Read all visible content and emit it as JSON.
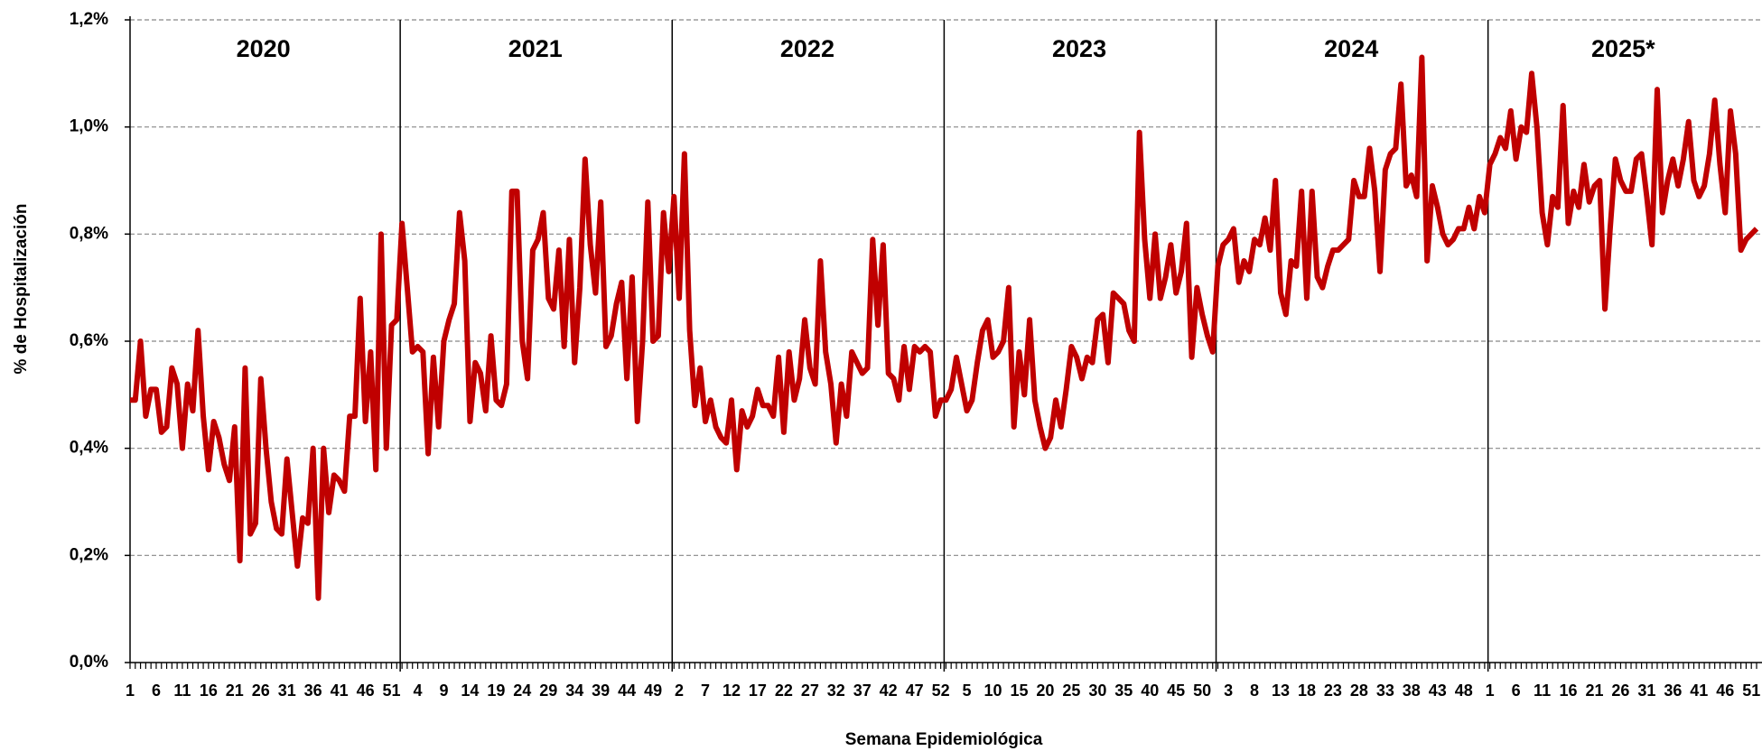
{
  "chart_data": {
    "type": "line",
    "xlabel": "Semana Epidemiológica",
    "ylabel": "% de Hospitalización",
    "annotations": [
      "2020",
      "2021",
      "2022",
      "2023",
      "2024",
      "2025*"
    ],
    "categories": [
      1,
      null,
      null,
      null,
      null,
      6,
      null,
      null,
      null,
      null,
      11,
      null,
      null,
      null,
      null,
      16,
      null,
      null,
      null,
      null,
      21,
      null,
      null,
      null,
      null,
      26,
      null,
      null,
      null,
      null,
      31,
      null,
      null,
      null,
      null,
      36,
      null,
      null,
      null,
      null,
      41,
      null,
      null,
      null,
      null,
      46,
      null,
      null,
      null,
      null,
      51,
      null,
      null,
      null,
      null,
      4,
      null,
      null,
      null,
      null,
      9,
      null,
      null,
      null,
      null,
      14,
      null,
      null,
      null,
      null,
      19,
      null,
      null,
      null,
      null,
      24,
      null,
      null,
      null,
      null,
      29,
      null,
      null,
      null,
      null,
      34,
      null,
      null,
      null,
      null,
      39,
      null,
      null,
      null,
      null,
      44,
      null,
      null,
      null,
      null,
      49,
      null,
      null,
      null,
      null,
      2,
      null,
      null,
      null,
      null,
      7,
      null,
      null,
      null,
      null,
      12,
      null,
      null,
      null,
      null,
      17,
      null,
      null,
      null,
      null,
      22,
      null,
      null,
      null,
      null,
      27,
      null,
      null,
      null,
      null,
      32,
      null,
      null,
      null,
      null,
      37,
      null,
      null,
      null,
      null,
      42,
      null,
      null,
      null,
      null,
      47,
      null,
      null,
      null,
      null,
      52,
      null,
      null,
      null,
      null,
      5,
      null,
      null,
      null,
      null,
      10,
      null,
      null,
      null,
      null,
      15,
      null,
      null,
      null,
      null,
      20,
      null,
      null,
      null,
      null,
      25,
      null,
      null,
      null,
      null,
      30,
      null,
      null,
      null,
      null,
      35,
      null,
      null,
      null,
      null,
      40,
      null,
      null,
      null,
      null,
      45,
      null,
      null,
      null,
      null,
      50,
      null,
      null,
      null,
      null,
      3,
      null,
      null,
      null,
      null,
      8,
      null,
      null,
      null,
      null,
      13,
      null,
      null,
      null,
      null,
      18,
      null,
      null,
      null,
      null,
      23,
      null,
      null,
      null,
      null,
      28,
      null,
      null,
      null,
      null,
      33,
      null,
      null,
      null,
      null,
      38,
      null,
      null,
      null,
      null,
      43,
      null,
      null,
      null,
      null,
      48,
      null,
      null,
      null,
      null,
      1,
      null,
      null,
      null,
      null,
      6,
      null,
      null,
      null,
      null,
      11,
      null,
      null,
      null,
      null,
      16,
      null,
      null,
      null,
      null,
      21,
      null,
      null,
      null,
      null,
      26,
      null,
      null,
      null,
      null,
      31,
      null,
      null,
      null,
      null,
      36,
      null,
      null,
      null,
      null,
      41,
      null,
      null,
      null,
      null,
      46,
      null,
      null,
      null,
      null,
      51,
      null
    ],
    "series": [
      {
        "name": "% de Hospitalización",
        "color": "#c00000",
        "values": [
          0.49,
          0.49,
          0.6,
          0.46,
          0.51,
          0.51,
          0.43,
          0.44,
          0.55,
          0.52,
          0.4,
          0.52,
          0.47,
          0.62,
          0.46,
          0.36,
          0.45,
          0.42,
          0.37,
          0.34,
          0.44,
          0.19,
          0.55,
          0.24,
          0.26,
          0.53,
          0.4,
          0.3,
          0.25,
          0.24,
          0.38,
          0.28,
          0.18,
          0.27,
          0.26,
          0.4,
          0.12,
          0.4,
          0.28,
          0.35,
          0.34,
          0.32,
          0.46,
          0.46,
          0.68,
          0.45,
          0.58,
          0.36,
          0.8,
          0.4,
          0.63,
          0.64,
          0.82,
          0.7,
          0.58,
          0.59,
          0.58,
          0.39,
          0.57,
          0.44,
          0.6,
          0.64,
          0.67,
          0.84,
          0.75,
          0.45,
          0.56,
          0.54,
          0.47,
          0.61,
          0.49,
          0.48,
          0.52,
          0.88,
          0.88,
          0.6,
          0.53,
          0.77,
          0.79,
          0.84,
          0.68,
          0.66,
          0.77,
          0.59,
          0.79,
          0.56,
          0.7,
          0.94,
          0.78,
          0.69,
          0.86,
          0.59,
          0.61,
          0.67,
          0.71,
          0.53,
          0.72,
          0.45,
          0.6,
          0.86,
          0.6,
          0.61,
          0.84,
          0.73,
          0.87,
          0.68,
          0.95,
          0.62,
          0.48,
          0.55,
          0.45,
          0.49,
          0.44,
          0.42,
          0.41,
          0.49,
          0.36,
          0.47,
          0.44,
          0.46,
          0.51,
          0.48,
          0.48,
          0.46,
          0.57,
          0.43,
          0.58,
          0.49,
          0.53,
          0.64,
          0.55,
          0.52,
          0.75,
          0.58,
          0.52,
          0.41,
          0.52,
          0.46,
          0.58,
          0.56,
          0.54,
          0.55,
          0.79,
          0.63,
          0.78,
          0.54,
          0.53,
          0.49,
          0.59,
          0.51,
          0.59,
          0.58,
          0.59,
          0.58,
          0.46,
          0.49,
          0.49,
          0.51,
          0.57,
          0.52,
          0.47,
          0.49,
          0.56,
          0.62,
          0.64,
          0.57,
          0.58,
          0.6,
          0.7,
          0.44,
          0.58,
          0.5,
          0.64,
          0.49,
          0.44,
          0.4,
          0.42,
          0.49,
          0.44,
          0.51,
          0.59,
          0.57,
          0.53,
          0.57,
          0.56,
          0.64,
          0.65,
          0.56,
          0.69,
          0.68,
          0.67,
          0.62,
          0.6,
          0.99,
          0.79,
          0.68,
          0.8,
          0.68,
          0.72,
          0.78,
          0.69,
          0.73,
          0.82,
          0.57,
          0.7,
          0.65,
          0.61,
          0.58,
          0.74,
          0.78,
          0.79,
          0.81,
          0.71,
          0.75,
          0.73,
          0.79,
          0.78,
          0.83,
          0.77,
          0.9,
          0.69,
          0.65,
          0.75,
          0.74,
          0.88,
          0.68,
          0.88,
          0.72,
          0.7,
          0.74,
          0.77,
          0.77,
          0.78,
          0.79,
          0.9,
          0.87,
          0.87,
          0.96,
          0.88,
          0.73,
          0.92,
          0.95,
          0.96,
          1.08,
          0.89,
          0.91,
          0.87,
          1.13,
          0.75,
          0.89,
          0.85,
          0.8,
          0.78,
          0.79,
          0.81,
          0.81,
          0.85,
          0.81,
          0.87,
          0.84,
          0.93,
          0.95,
          0.98,
          0.96,
          1.03,
          0.94,
          1.0,
          0.99,
          1.1,
          1.0,
          0.84,
          0.78,
          0.87,
          0.85,
          1.04,
          0.82,
          0.88,
          0.85,
          0.93,
          0.86,
          0.89,
          0.9,
          0.66,
          0.81,
          0.94,
          0.9,
          0.88,
          0.88,
          0.94,
          0.95,
          0.87,
          0.78,
          1.07,
          0.84,
          0.9,
          0.94,
          0.89,
          0.94,
          1.01,
          0.9,
          0.87,
          0.89,
          0.95,
          1.05,
          0.93,
          0.84,
          1.03,
          0.95,
          0.77,
          0.79,
          0.8,
          0.81
        ]
      }
    ],
    "ylim": [
      0,
      1.2
    ],
    "yticks": [
      {
        "value": 0,
        "label": "0,0%"
      },
      {
        "value": 0.2,
        "label": "0,2%"
      },
      {
        "value": 0.4,
        "label": "0,4%"
      },
      {
        "value": 0.6,
        "label": "0,6%"
      },
      {
        "value": 0.8,
        "label": "0,8%"
      },
      {
        "value": 1.0,
        "label": "1,0%"
      },
      {
        "value": 1.2,
        "label": "1,2%"
      }
    ],
    "grid": true
  }
}
